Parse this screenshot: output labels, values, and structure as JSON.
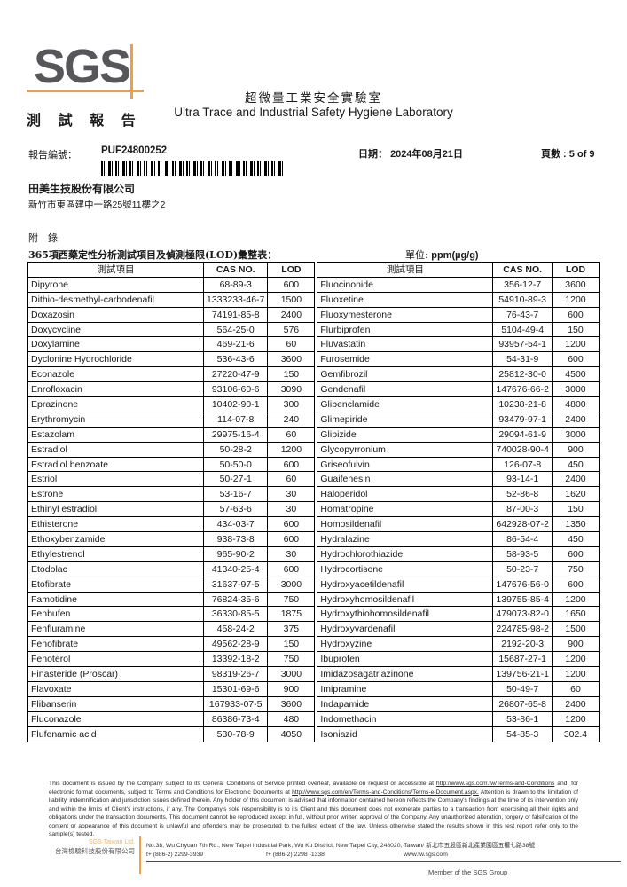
{
  "header": {
    "logo_text": "SGS",
    "report_title_zh": "測 試 報 告",
    "lab_title_zh": "超微量工業安全實驗室",
    "lab_title_en": "Ultra Trace and Industrial Safety Hygiene Laboratory",
    "report_no_label": "報告編號：",
    "report_no": "PUF24800252",
    "date_label": "日期：",
    "date_value": "2024年08月21日",
    "page_label": "頁數 :",
    "page_value": "5 of 9"
  },
  "client": {
    "name": "田美生技股份有限公司",
    "address": "新竹市東區建中一路25號11樓之2"
  },
  "appendix": {
    "label": "附　錄",
    "table_caption": "365項西藥定性分析測試項目及偵測極限(LOD)彙整表：",
    "unit_label": "單位:",
    "unit_value": "ppm(µg/g)"
  },
  "table": {
    "headers": {
      "item": "測試項目",
      "cas": "CAS NO.",
      "lod": "LOD"
    },
    "left_rows": [
      {
        "name": "Dipyrone",
        "cas": "68-89-3",
        "lod": "600"
      },
      {
        "name": "Dithio-desmethyl-carbodenafil",
        "cas": "1333233-46-7",
        "lod": "1500"
      },
      {
        "name": "Doxazosin",
        "cas": "74191-85-8",
        "lod": "2400"
      },
      {
        "name": "Doxycycline",
        "cas": "564-25-0",
        "lod": "576"
      },
      {
        "name": "Doxylamine",
        "cas": "469-21-6",
        "lod": "60"
      },
      {
        "name": "Dyclonine Hydrochloride",
        "cas": "536-43-6",
        "lod": "3600"
      },
      {
        "name": "Econazole",
        "cas": "27220-47-9",
        "lod": "150"
      },
      {
        "name": "Enrofloxacin",
        "cas": "93106-60-6",
        "lod": "3090"
      },
      {
        "name": "Eprazinone",
        "cas": "10402-90-1",
        "lod": "300"
      },
      {
        "name": "Erythromycin",
        "cas": "114-07-8",
        "lod": "240"
      },
      {
        "name": "Estazolam",
        "cas": "29975-16-4",
        "lod": "60"
      },
      {
        "name": "Estradiol",
        "cas": "50-28-2",
        "lod": "1200"
      },
      {
        "name": "Estradiol benzoate",
        "cas": "50-50-0",
        "lod": "600"
      },
      {
        "name": "Estriol",
        "cas": "50-27-1",
        "lod": "60"
      },
      {
        "name": "Estrone",
        "cas": "53-16-7",
        "lod": "30"
      },
      {
        "name": "Ethinyl estradiol",
        "cas": "57-63-6",
        "lod": "30"
      },
      {
        "name": "Ethisterone",
        "cas": "434-03-7",
        "lod": "600"
      },
      {
        "name": "Ethoxybenzamide",
        "cas": "938-73-8",
        "lod": "600"
      },
      {
        "name": "Ethylestrenol",
        "cas": "965-90-2",
        "lod": "30"
      },
      {
        "name": "Etodolac",
        "cas": "41340-25-4",
        "lod": "600"
      },
      {
        "name": "Etofibrate",
        "cas": "31637-97-5",
        "lod": "3000"
      },
      {
        "name": "Famotidine",
        "cas": "76824-35-6",
        "lod": "750"
      },
      {
        "name": "Fenbufen",
        "cas": "36330-85-5",
        "lod": "1875"
      },
      {
        "name": "Fenfluramine",
        "cas": "458-24-2",
        "lod": "375"
      },
      {
        "name": "Fenofibrate",
        "cas": "49562-28-9",
        "lod": "150"
      },
      {
        "name": "Fenoterol",
        "cas": "13392-18-2",
        "lod": "750"
      },
      {
        "name": "Finasteride (Proscar)",
        "cas": "98319-26-7",
        "lod": "3000"
      },
      {
        "name": "Flavoxate",
        "cas": "15301-69-6",
        "lod": "900"
      },
      {
        "name": "Flibanserin",
        "cas": "167933-07-5",
        "lod": "3600"
      },
      {
        "name": "Fluconazole",
        "cas": "86386-73-4",
        "lod": "480"
      },
      {
        "name": "Flufenamic acid",
        "cas": "530-78-9",
        "lod": "4050"
      }
    ],
    "right_rows": [
      {
        "name": "Fluocinonide",
        "cas": "356-12-7",
        "lod": "3600"
      },
      {
        "name": "Fluoxetine",
        "cas": "54910-89-3",
        "lod": "1200"
      },
      {
        "name": "Fluoxymesterone",
        "cas": "76-43-7",
        "lod": "600"
      },
      {
        "name": "Flurbiprofen",
        "cas": "5104-49-4",
        "lod": "150"
      },
      {
        "name": "Fluvastatin",
        "cas": "93957-54-1",
        "lod": "1200"
      },
      {
        "name": "Furosemide",
        "cas": "54-31-9",
        "lod": "600"
      },
      {
        "name": "Gemfibrozil",
        "cas": "25812-30-0",
        "lod": "4500"
      },
      {
        "name": "Gendenafil",
        "cas": "147676-66-2",
        "lod": "3000"
      },
      {
        "name": "Glibenclamide",
        "cas": "10238-21-8",
        "lod": "4800"
      },
      {
        "name": "Glimepiride",
        "cas": "93479-97-1",
        "lod": "2400"
      },
      {
        "name": "Glipizide",
        "cas": "29094-61-9",
        "lod": "3000"
      },
      {
        "name": "Glycopyrronium",
        "cas": "740028-90-4",
        "lod": "900"
      },
      {
        "name": "Griseofulvin",
        "cas": "126-07-8",
        "lod": "450"
      },
      {
        "name": "Guaifenesin",
        "cas": "93-14-1",
        "lod": "2400"
      },
      {
        "name": "Haloperidol",
        "cas": "52-86-8",
        "lod": "1620"
      },
      {
        "name": "Homatropine",
        "cas": "87-00-3",
        "lod": "150"
      },
      {
        "name": "Homosildenafil",
        "cas": "642928-07-2",
        "lod": "1350"
      },
      {
        "name": "Hydralazine",
        "cas": "86-54-4",
        "lod": "450"
      },
      {
        "name": "Hydrochlorothiazide",
        "cas": "58-93-5",
        "lod": "600"
      },
      {
        "name": "Hydrocortisone",
        "cas": "50-23-7",
        "lod": "750"
      },
      {
        "name": "Hydroxyacetildenafil",
        "cas": "147676-56-0",
        "lod": "600"
      },
      {
        "name": "Hydroxyhomosildenafil",
        "cas": "139755-85-4",
        "lod": "1200"
      },
      {
        "name": "Hydroxythiohomosildenafil",
        "cas": "479073-82-0",
        "lod": "1650"
      },
      {
        "name": "Hydroxyvardenafil",
        "cas": "224785-98-2",
        "lod": "1500"
      },
      {
        "name": "Hydroxyzine",
        "cas": "2192-20-3",
        "lod": "900"
      },
      {
        "name": "Ibuprofen",
        "cas": "15687-27-1",
        "lod": "1200"
      },
      {
        "name": "Imidazosagatriazinone",
        "cas": "139756-21-1",
        "lod": "1200"
      },
      {
        "name": "Imipramine",
        "cas": "50-49-7",
        "lod": "60"
      },
      {
        "name": "Indapamide",
        "cas": "26807-65-8",
        "lod": "2400"
      },
      {
        "name": "Indomethacin",
        "cas": "53-86-1",
        "lod": "1200"
      },
      {
        "name": "Isoniazid",
        "cas": "54-85-3",
        "lod": "302.4"
      }
    ]
  },
  "footer": {
    "disclaimer_p1": "This document is issued by the Company subject to its General Conditions of Service printed overleaf, available on request or accessible at ",
    "disclaimer_link1": "http://www.sgs.com.tw/Terms-and-Conditions",
    "disclaimer_p2": " and, for electronic format documents, subject to Terms and Conditions for Electronic Documents at ",
    "disclaimer_link2": "http://www.sgs.com/en/Terms-and-Conditions/Terms-e-Document.aspx.",
    "disclaimer_p3": " Attention is drawn to the limitation of liability, indemnification and jurisdiction issues defined therein. Any holder of this document is advised that information contained hereon reflects the Company's findings at the time of its intervention only and within the limits of Client's instructions, if any. The Company's sole responsibility is to its Client and this document does not exonerate parties to a transaction from exercising all their rights and obligations under the transaction documents. This document cannot be reproduced except in full, without prior written approval of the Company. Any unauthorized alteration, forgery or falsification of the content or appearance of this document is unlawful and offenders may be prosecuted to the fullest extent of the law. Unless otherwise stated the results shown in this test report refer only to the sample(s) tested.",
    "company_en": "SGS Taiwan Ltd.",
    "company_zh": "台灣檢驗科技股份有限公司",
    "address": "No.38, Wu Chyuan 7th Rd., New Taipei Industrial Park, Wu Ku District, New Taipei City, 248020, Taiwan/ 新北市五股區新北產業園區五權七路38號",
    "tel": "t+ (886-2) 2299-3939",
    "fax": "f+ (886-2) 2298 -1338",
    "web": "www.tw.sgs.com",
    "member": "Member of the SGS Group"
  },
  "colors": {
    "accent_orange": "#EFA045",
    "logo_grey": "#57575B"
  }
}
